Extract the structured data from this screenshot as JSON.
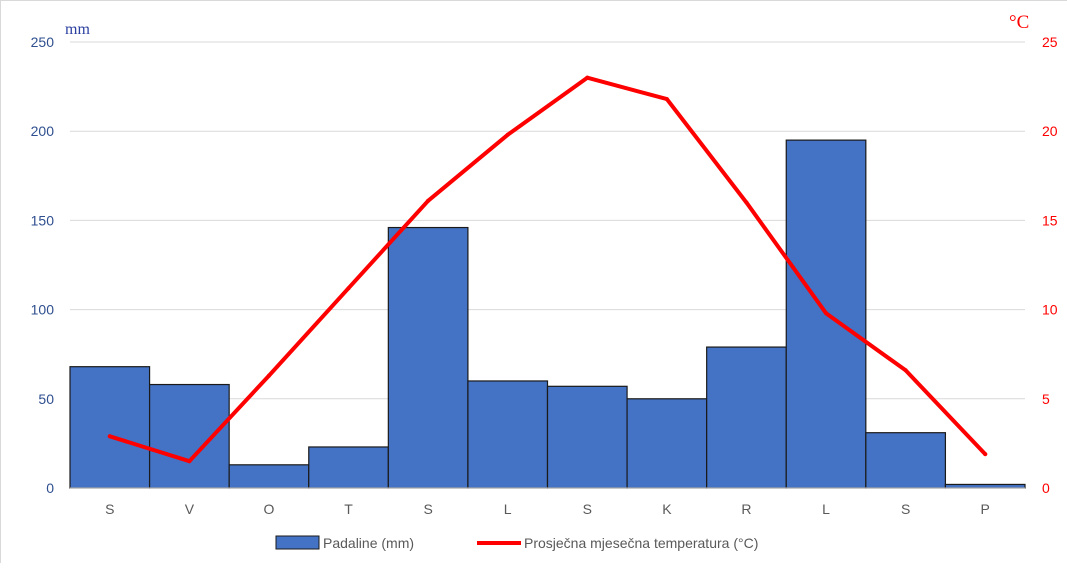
{
  "chart_data": {
    "type": "bar",
    "categories": [
      "S",
      "V",
      "O",
      "T",
      "S",
      "L",
      "S",
      "K",
      "R",
      "L",
      "S",
      "P"
    ],
    "series": [
      {
        "name": "Padaline (mm)",
        "type": "bar",
        "axis": "left",
        "color": "#4472c4",
        "values": [
          68,
          58,
          13,
          23,
          146,
          60,
          57,
          50,
          79,
          195,
          31,
          2
        ]
      },
      {
        "name": "Prosječna mjesečna temperatura (°C)",
        "type": "line",
        "axis": "right",
        "color": "#ff0000",
        "values": [
          2.9,
          1.5,
          6.3,
          11.2,
          16.1,
          19.8,
          23.0,
          21.8,
          16.0,
          9.8,
          6.6,
          1.9
        ]
      }
    ],
    "y_left": {
      "label": "mm",
      "ylim": [
        0,
        250
      ],
      "ticks": [
        0,
        50,
        100,
        150,
        200,
        250
      ],
      "color": "#2f4f8f"
    },
    "y_right": {
      "label": "°C",
      "ylim": [
        0,
        25
      ],
      "ticks": [
        0,
        5,
        10,
        15,
        20,
        25
      ],
      "color": "#ff0000"
    },
    "grid": true,
    "legend": "bottom"
  }
}
